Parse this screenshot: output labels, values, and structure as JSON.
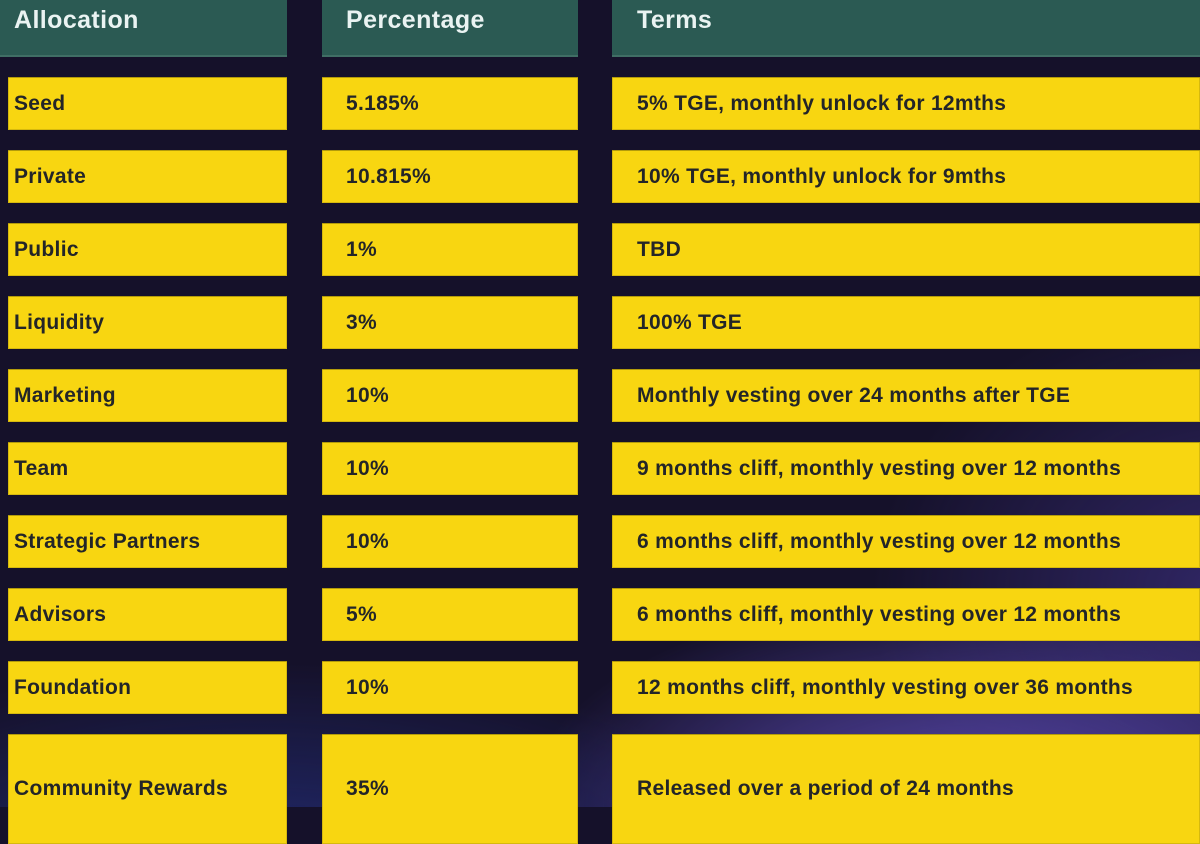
{
  "colors": {
    "background": "#15112a",
    "header_teal": "#2b5a53",
    "cell_yellow": "#f8d611",
    "cell_text": "#232528",
    "header_text": "#eaf3f2",
    "glow_purple": "#5c4ab2"
  },
  "chart_data": {
    "type": "table",
    "title": "",
    "columns": [
      "Allocation",
      "Percentage",
      "Terms"
    ],
    "rows": [
      [
        "Seed",
        "5.185%",
        "5% TGE, monthly unlock for 12mths"
      ],
      [
        "Private",
        "10.815%",
        "10% TGE, monthly unlock for 9mths"
      ],
      [
        "Public",
        "1%",
        "TBD"
      ],
      [
        "Liquidity",
        "3%",
        "100% TGE"
      ],
      [
        "Marketing",
        "10%",
        "Monthly vesting over 24 months after TGE"
      ],
      [
        "Team",
        "10%",
        "9 months cliff, monthly vesting over 12 months"
      ],
      [
        "Strategic Partners",
        "10%",
        "6 months cliff, monthly vesting over 12 months"
      ],
      [
        "Advisors",
        "5%",
        "6 months cliff, monthly vesting over 12 months"
      ],
      [
        "Foundation",
        "10%",
        "12 months cliff, monthly vesting over 36 months"
      ],
      [
        "Community Rewards",
        "35%",
        "Released over a period of 24 months"
      ]
    ],
    "layout_hints": {
      "grid": "off",
      "header_style": "teal blocks, white bold text",
      "row_style": "yellow blocks, dark bold text",
      "last_row_clipped_at_bottom": true
    }
  }
}
